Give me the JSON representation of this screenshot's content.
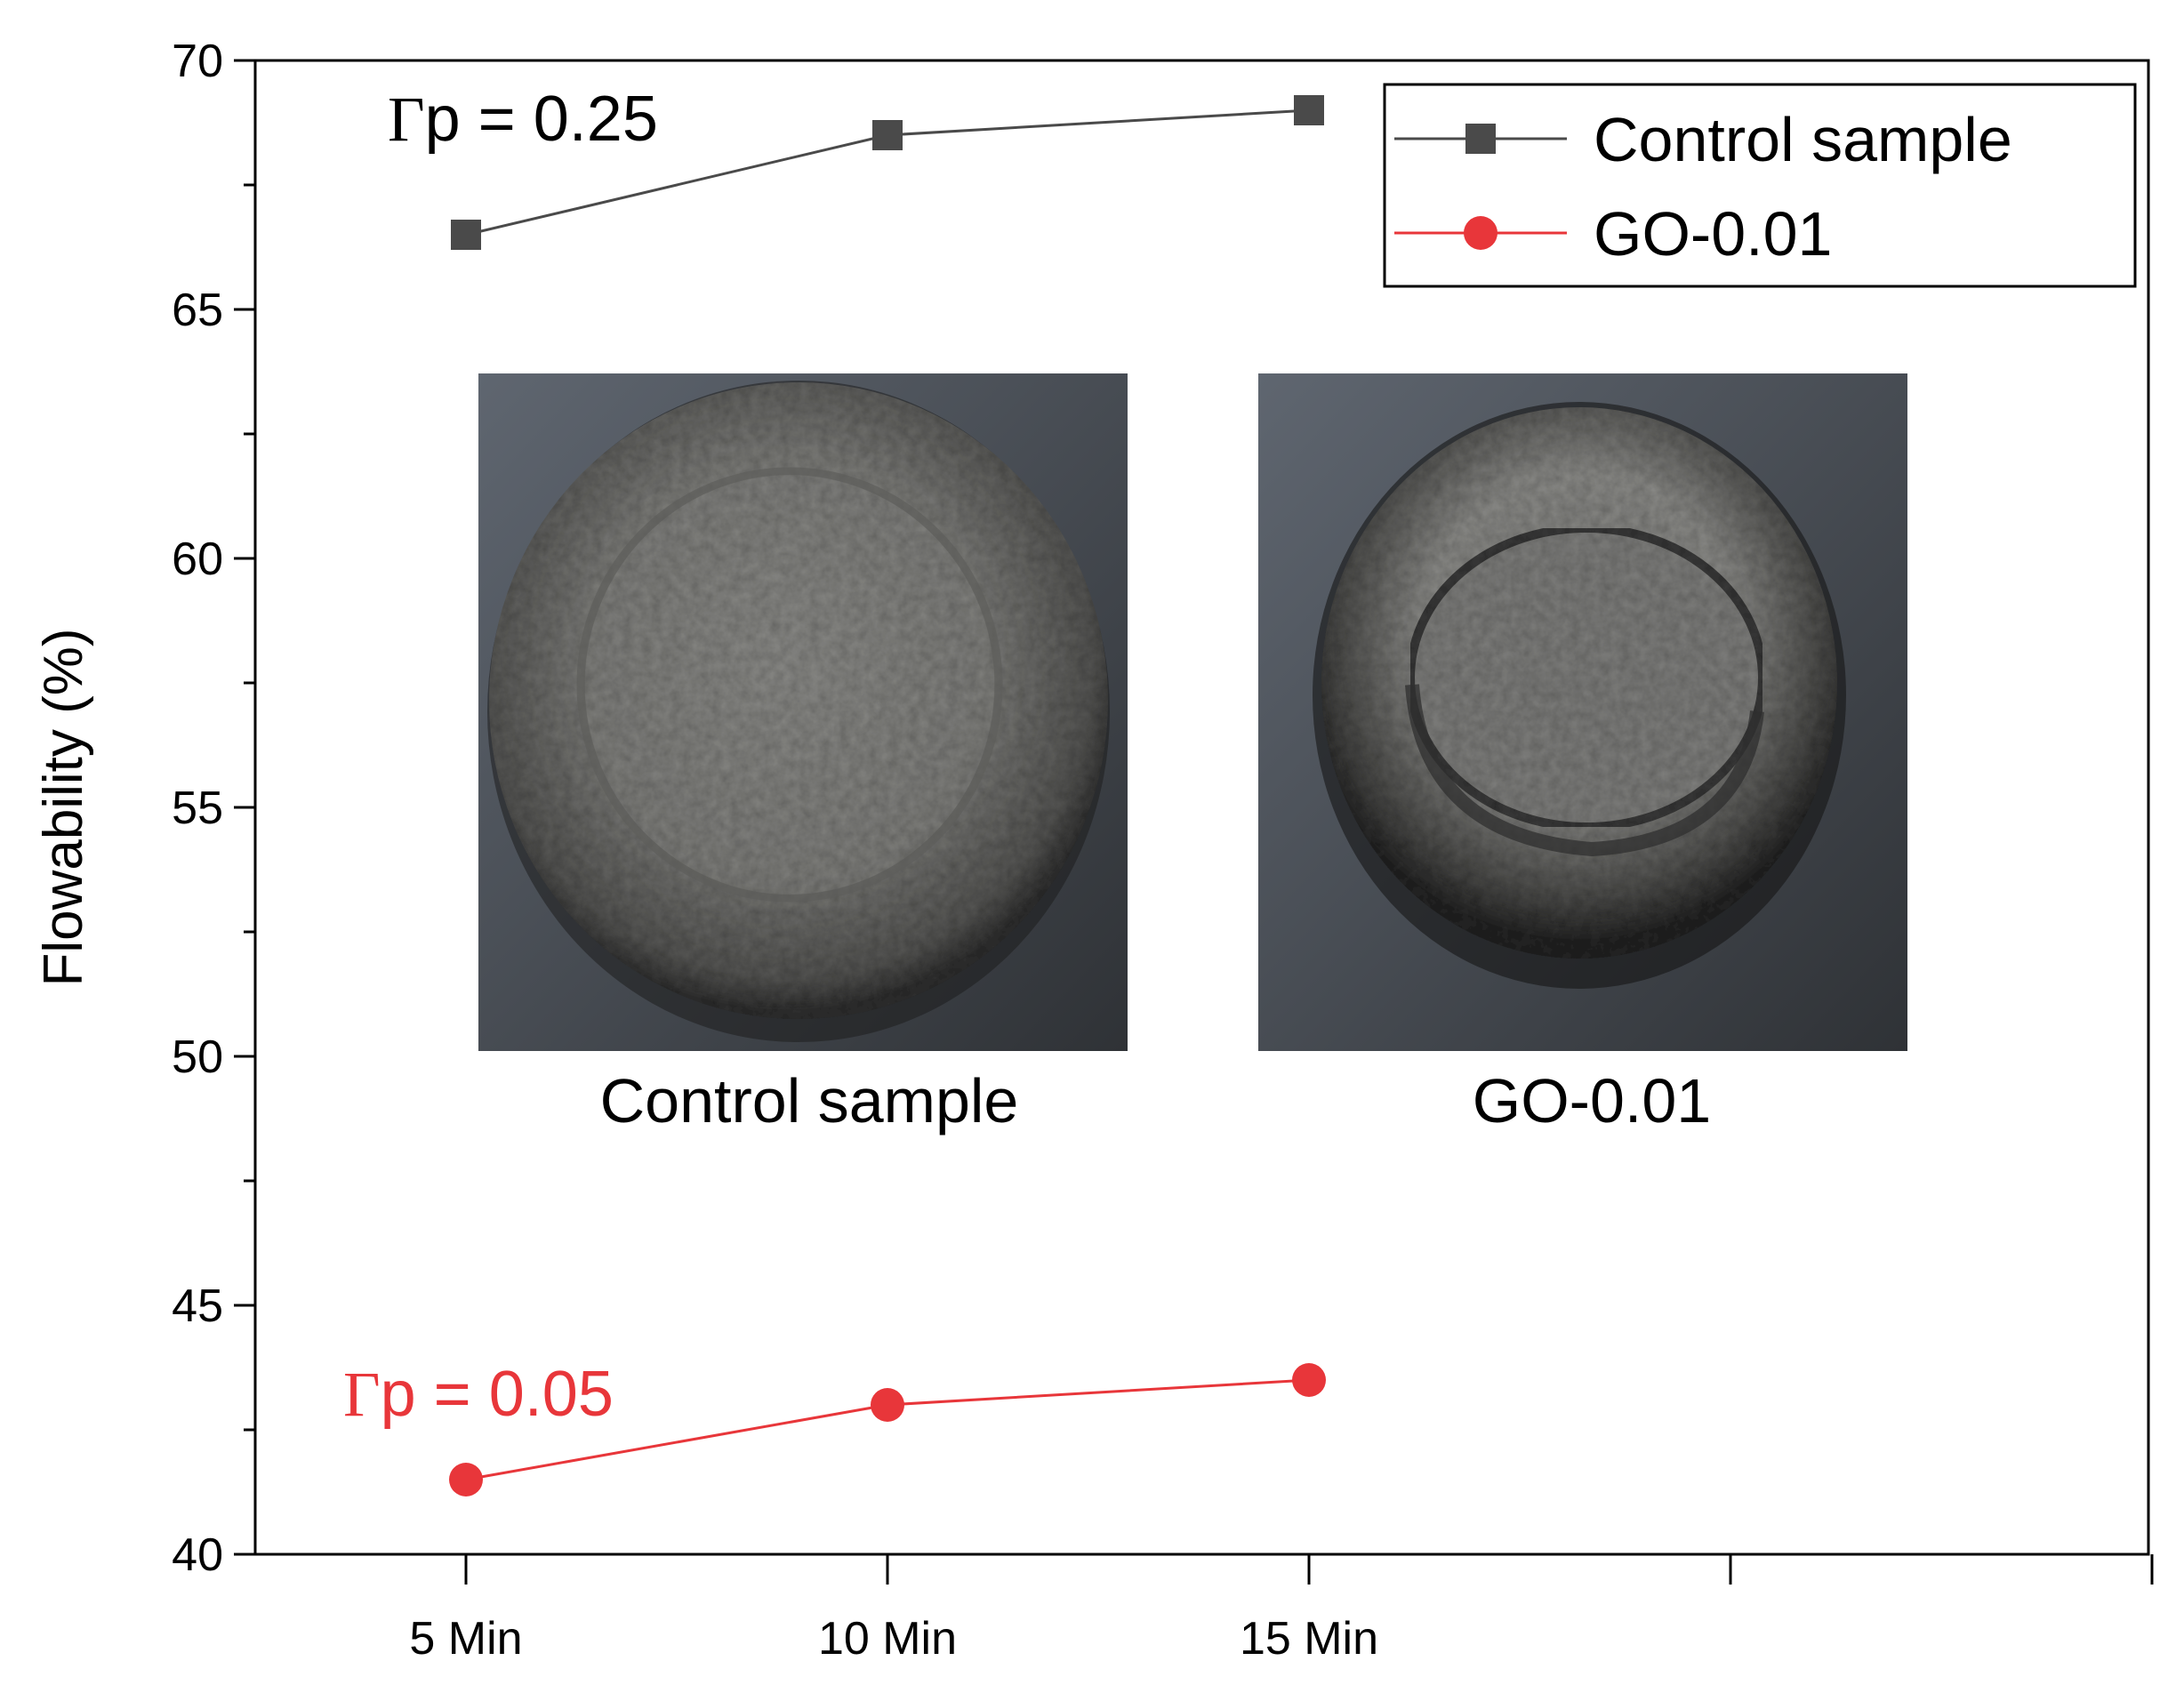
{
  "chart_data": {
    "type": "line",
    "categories": [
      "5 Min",
      "10 Min",
      "15 Min"
    ],
    "x_extra_ticks": 2,
    "ylabel": "Flowability (%)",
    "ylim": [
      40,
      70
    ],
    "yticks": [
      40,
      45,
      50,
      55,
      60,
      65,
      70
    ],
    "grid": false,
    "legend_position": "top-right",
    "series": [
      {
        "name": "Control sample",
        "values": [
          66.5,
          68.5,
          69.0
        ],
        "color": "#4a4a4a",
        "marker": "square"
      },
      {
        "name": "GO-0.01",
        "values": [
          41.5,
          43.0,
          43.5
        ],
        "color": "#e8363a",
        "marker": "circle"
      }
    ],
    "annotations": [
      {
        "gamma": "Γ",
        "text": "p = 0.25",
        "color": "#000000"
      },
      {
        "gamma": "Γ",
        "text": "p = 0.05",
        "color": "#e8363a"
      }
    ],
    "photos": [
      {
        "caption": "Control sample"
      },
      {
        "caption": "GO-0.01"
      }
    ]
  }
}
